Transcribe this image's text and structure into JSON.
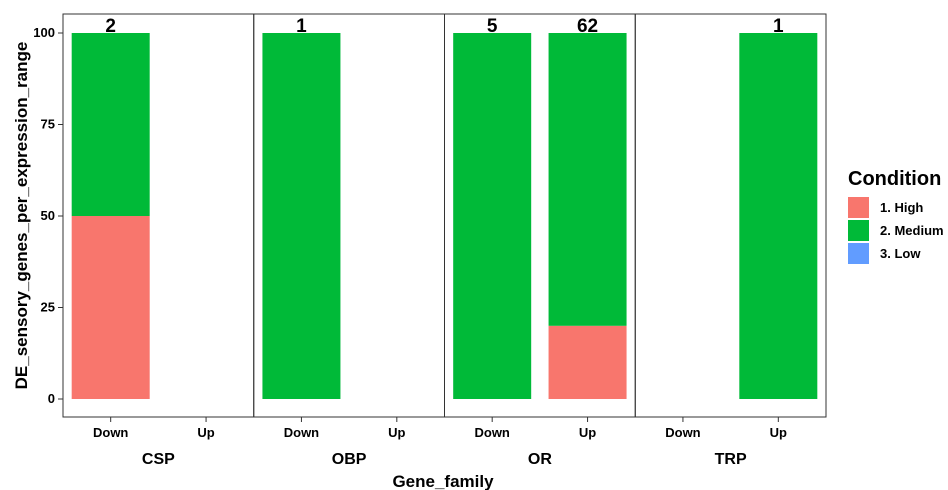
{
  "chart_data": {
    "type": "bar",
    "stacked": true,
    "xlabel": "Gene_family",
    "ylabel": "DE_sensory_genes_per_expression_range",
    "ylim": [
      0,
      105
    ],
    "yticks": [
      0,
      25,
      50,
      75,
      100
    ],
    "grid": false,
    "facets": [
      "CSP",
      "OBP",
      "OR",
      "TRP"
    ],
    "categories": [
      "Down",
      "Up"
    ],
    "series": [
      {
        "name": "1. High",
        "color": "#F8766D",
        "values": {
          "CSP": [
            50,
            0
          ],
          "OBP": [
            0,
            0
          ],
          "OR": [
            0,
            20
          ],
          "TRP": [
            0,
            0
          ]
        }
      },
      {
        "name": "2. Medium",
        "color": "#00BA38",
        "values": {
          "CSP": [
            50,
            0
          ],
          "OBP": [
            100,
            0
          ],
          "OR": [
            100,
            80
          ],
          "TRP": [
            0,
            100
          ]
        }
      },
      {
        "name": "3. Low",
        "color": "#619CFF",
        "values": {
          "CSP": [
            0,
            0
          ],
          "OBP": [
            0,
            0
          ],
          "OR": [
            0,
            0
          ],
          "TRP": [
            0,
            0
          ]
        }
      }
    ],
    "counts": {
      "CSP": [
        "2",
        ""
      ],
      "OBP": [
        "1",
        ""
      ],
      "OR": [
        "5",
        "62"
      ],
      "TRP": [
        "",
        "1"
      ]
    },
    "legend": {
      "title": "Condition",
      "position": "right"
    }
  }
}
